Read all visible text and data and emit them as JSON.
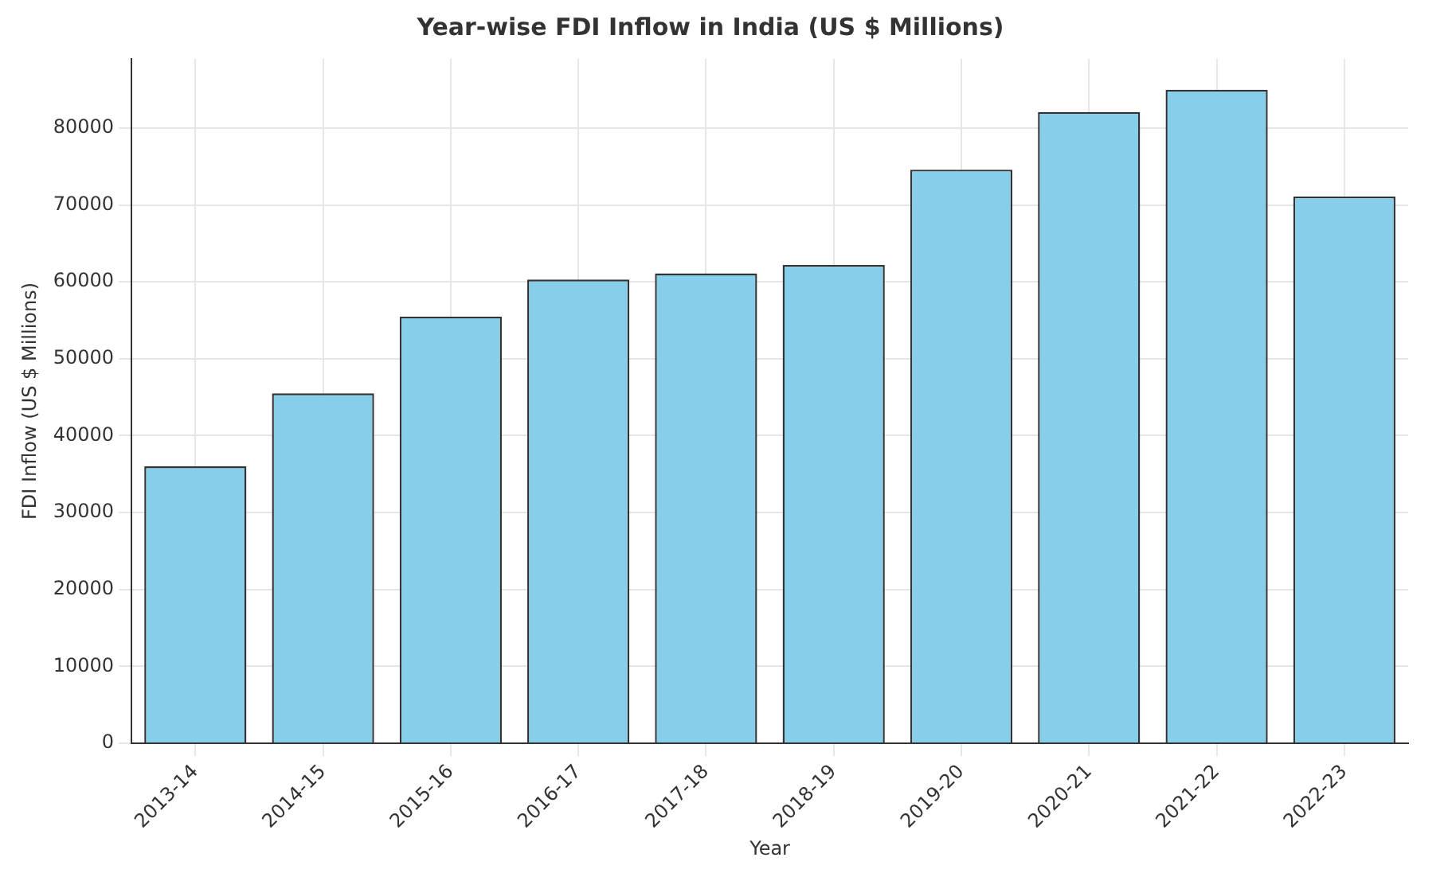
{
  "chart_data": {
    "type": "bar",
    "title": "Year-wise FDI Inflow in India (US $ Millions)",
    "xlabel": "Year",
    "ylabel": "FDI Inflow (US $ Millions)",
    "categories": [
      "2013-14",
      "2014-15",
      "2015-16",
      "2016-17",
      "2017-18",
      "2018-19",
      "2019-20",
      "2020-21",
      "2021-22",
      "2022-23"
    ],
    "values": [
      36000,
      45500,
      55500,
      60300,
      61100,
      62200,
      74600,
      82100,
      85000,
      71100
    ],
    "color": "#87ceeb",
    "ylim": [
      0,
      89000
    ],
    "yticks": [
      0,
      10000,
      20000,
      30000,
      40000,
      50000,
      60000,
      70000,
      80000
    ],
    "grid": true
  }
}
